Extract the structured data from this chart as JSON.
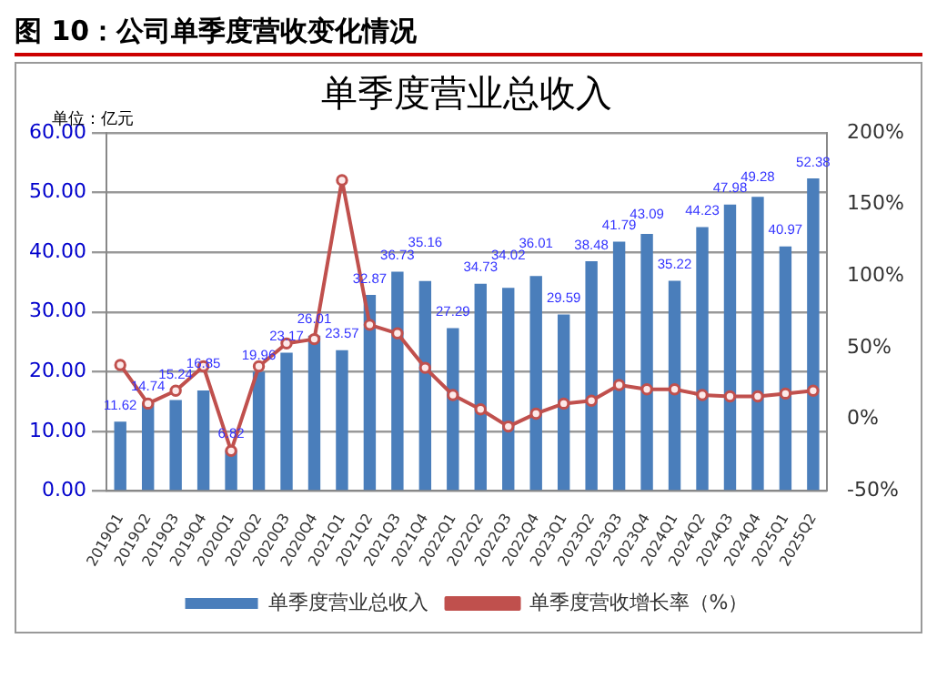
{
  "chart_data": {
    "type": "bar",
    "title": "图 10：公司单季度营收变化情况",
    "subtitle": "单季度营业总收入",
    "annotations": [
      "单位：亿元"
    ],
    "categories": [
      "2019Q1",
      "2019Q2",
      "2019Q3",
      "2019Q4",
      "2020Q1",
      "2020Q2",
      "2020Q3",
      "2020Q4",
      "2021Q1",
      "2021Q2",
      "2021Q3",
      "2021Q4",
      "2022Q1",
      "2022Q2",
      "2022Q3",
      "2022Q4",
      "2023Q1",
      "2023Q2",
      "2023Q3",
      "2023Q4",
      "2024Q1",
      "2024Q2",
      "2024Q3",
      "2024Q4",
      "2025Q1",
      "2025Q2"
    ],
    "series": [
      {
        "name": "单季度营业总收入",
        "color": "#4a7ebb",
        "data_labels": true,
        "values": [
          11.62,
          14.74,
          15.24,
          16.85,
          6.82,
          19.96,
          23.17,
          26.01,
          23.57,
          32.87,
          36.73,
          35.16,
          27.29,
          34.73,
          34.02,
          36.01,
          29.59,
          38.48,
          41.79,
          43.09,
          35.22,
          44.23,
          47.98,
          49.28,
          40.97,
          52.38
        ]
      },
      {
        "name": "单季度营收增长率（%）",
        "type": "line",
        "axis": "y2",
        "color": "#c0504d",
        "marker": "circle",
        "values": [
          38,
          11,
          20,
          37,
          -22,
          37,
          53,
          56,
          167,
          66,
          60,
          36,
          17,
          7,
          -5,
          4,
          11,
          13,
          24,
          21,
          21,
          17,
          16,
          16,
          18,
          20
        ]
      }
    ],
    "ylim": [
      0,
      60
    ],
    "yticks": [
      {
        "value": 0,
        "label": "0.00"
      },
      {
        "value": 10,
        "label": "10.00"
      },
      {
        "value": 20,
        "label": "20.00"
      },
      {
        "value": 30,
        "label": "30.00"
      },
      {
        "value": 40,
        "label": "40.00"
      },
      {
        "value": 50,
        "label": "50.00"
      },
      {
        "value": 60,
        "label": "60.00"
      }
    ],
    "y2lim": [
      -50,
      200
    ],
    "y2ticks": [
      {
        "value": -50,
        "label": "-50%"
      },
      {
        "value": 0,
        "label": "0%"
      },
      {
        "value": 50,
        "label": "50%"
      },
      {
        "value": 100,
        "label": "100%"
      },
      {
        "value": 150,
        "label": "150%"
      },
      {
        "value": 200,
        "label": "200%"
      }
    ],
    "grid": "y",
    "legend": "bottom"
  }
}
